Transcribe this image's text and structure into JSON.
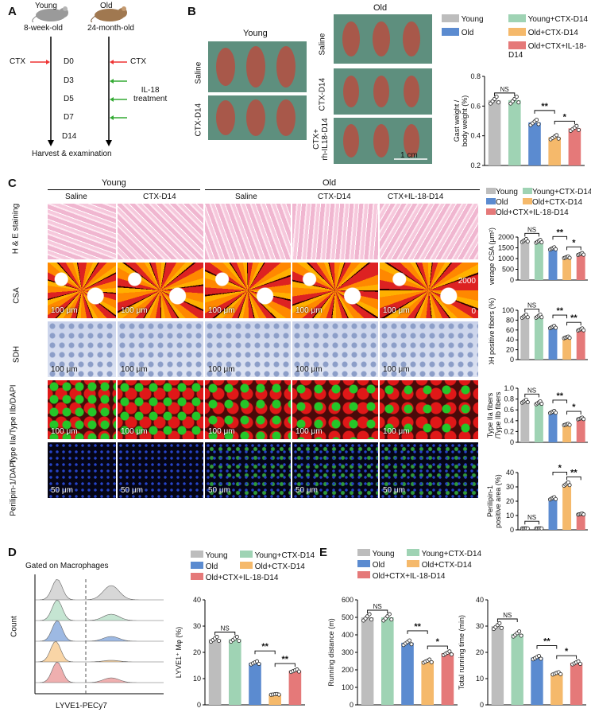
{
  "panels": {
    "a": "A",
    "b": "B",
    "c": "C",
    "d": "D",
    "e": "E"
  },
  "colors": {
    "young": "#bdbdbd",
    "young_ctx": "#9fd3b4",
    "old": "#5b8bd0",
    "old_ctx": "#f5b96b",
    "old_ctx_il18": "#e57979"
  },
  "legend": {
    "young": "Young",
    "young_ctx": "Young+CTX-D14",
    "old": "Old",
    "old_ctx": "Old+CTX-D14",
    "old_ctx_il18": "Old+CTX+IL-18-D14"
  },
  "a": {
    "young_label": "Young",
    "young_age": "8-week-old",
    "old_label": "Old",
    "old_age": "24-month-old",
    "ctx_left": "CTX",
    "ctx_right": "CTX",
    "days": [
      "D0",
      "D3",
      "D5",
      "D7",
      "D14"
    ],
    "treatment": "IL-18\ntreatment",
    "harvest": "Harvest & examination"
  },
  "b": {
    "young_title": "Young",
    "old_title": "Old",
    "row_saline": "Saline",
    "row_ctx": "CTX-D14",
    "row_il18": "CTX+\nrh-IL18-D14",
    "scale": "1 cm"
  },
  "c": {
    "young_title": "Young",
    "old_title": "Old",
    "cols": [
      "Saline",
      "CTX-D14",
      "Saline",
      "CTX-D14",
      "CTX+IL-18-D14"
    ],
    "rows": [
      "H & E staining",
      "CSA",
      "SDH",
      "Type IIa/Type IIb/DAPI",
      "Perilipin-1/DAPI"
    ],
    "scale_100": "100 μm",
    "scale_50": "50 μm",
    "csa_max": "2000",
    "csa_min": "0"
  },
  "d": {
    "gated": "Gated on Macrophages",
    "count": "Count",
    "xlabel": "LYVE1-PECy7"
  },
  "chart_data": [
    {
      "id": "b_gast",
      "type": "bar",
      "ylabel": "Gast weight /\nbody weight (%)",
      "ylim": [
        0.2,
        0.8
      ],
      "yticks": [
        "0.2",
        "0.4",
        "0.6",
        "0.8"
      ],
      "values": [
        0.64,
        0.64,
        0.49,
        0.39,
        0.45
      ],
      "sig": [
        {
          "a": 0,
          "b": 1,
          "t": "NS"
        },
        {
          "a": 2,
          "b": 3,
          "t": "**"
        },
        {
          "a": 3,
          "b": 4,
          "t": "*"
        }
      ]
    },
    {
      "id": "c_csa",
      "type": "bar",
      "ylabel": "Average CSA (μm²)",
      "ylim": [
        0,
        2000
      ],
      "yticks": [
        "0",
        "500",
        "1000",
        "1500",
        "2000"
      ],
      "values": [
        1840,
        1800,
        1470,
        1060,
        1210
      ],
      "sig": [
        {
          "a": 0,
          "b": 1,
          "t": "NS"
        },
        {
          "a": 2,
          "b": 3,
          "t": "**"
        },
        {
          "a": 3,
          "b": 4,
          "t": "*"
        }
      ]
    },
    {
      "id": "c_sdh",
      "type": "bar",
      "ylabel": "SDH positive fibers (%)",
      "ylim": [
        0,
        100
      ],
      "yticks": [
        "0",
        "20",
        "40",
        "60",
        "80",
        "100"
      ],
      "values": [
        88,
        88,
        66,
        45,
        61
      ],
      "sig": [
        {
          "a": 0,
          "b": 1,
          "t": "NS"
        },
        {
          "a": 2,
          "b": 3,
          "t": "**"
        },
        {
          "a": 3,
          "b": 4,
          "t": "**"
        }
      ]
    },
    {
      "id": "c_type",
      "type": "bar",
      "ylabel": "Type IIa fibers\n/Type IIb fibers",
      "ylim": [
        0,
        1.0
      ],
      "yticks": [
        "0",
        "0.2",
        "0.4",
        "0.6",
        "0.8",
        "1.0"
      ],
      "values": [
        0.76,
        0.73,
        0.56,
        0.33,
        0.44
      ],
      "sig": [
        {
          "a": 0,
          "b": 1,
          "t": "NS"
        },
        {
          "a": 2,
          "b": 3,
          "t": "**"
        },
        {
          "a": 3,
          "b": 4,
          "t": "*"
        }
      ]
    },
    {
      "id": "c_peri",
      "type": "bar",
      "ylabel": "Perilipin-1\npositive area (%)",
      "ylim": [
        0,
        40
      ],
      "yticks": [
        "0",
        "10",
        "20",
        "30",
        "40"
      ],
      "values": [
        1,
        1,
        22,
        32,
        11
      ],
      "sig": [
        {
          "a": 0,
          "b": 1,
          "t": "NS"
        },
        {
          "a": 2,
          "b": 3,
          "t": "*"
        },
        {
          "a": 3,
          "b": 4,
          "t": "**"
        }
      ]
    },
    {
      "id": "d_lyve",
      "type": "bar",
      "ylabel": "LYVE1⁺ Mφ (%)",
      "ylim": [
        0,
        40
      ],
      "yticks": [
        "0",
        "10",
        "20",
        "30",
        "40"
      ],
      "values": [
        25,
        25,
        16,
        4,
        13
      ],
      "sig": [
        {
          "a": 0,
          "b": 1,
          "t": "NS"
        },
        {
          "a": 2,
          "b": 3,
          "t": "**"
        },
        {
          "a": 3,
          "b": 4,
          "t": "**"
        }
      ]
    },
    {
      "id": "e_dist",
      "type": "bar",
      "ylabel": "Running distance (m)",
      "ylim": [
        0,
        600
      ],
      "yticks": [
        "0",
        "100",
        "200",
        "300",
        "400",
        "500",
        "600"
      ],
      "values": [
        500,
        500,
        355,
        250,
        295
      ],
      "sig": [
        {
          "a": 0,
          "b": 1,
          "t": "NS"
        },
        {
          "a": 2,
          "b": 3,
          "t": "**"
        },
        {
          "a": 3,
          "b": 4,
          "t": "*"
        }
      ]
    },
    {
      "id": "e_time",
      "type": "bar",
      "ylabel": "Total running time (min)",
      "ylim": [
        0,
        40
      ],
      "yticks": [
        "0",
        "10",
        "20",
        "30",
        "40"
      ],
      "values": [
        30,
        27,
        18,
        12,
        16
      ],
      "sig": [
        {
          "a": 0,
          "b": 1,
          "t": "NS"
        },
        {
          "a": 2,
          "b": 3,
          "t": "**"
        },
        {
          "a": 3,
          "b": 4,
          "t": "*"
        }
      ]
    }
  ]
}
